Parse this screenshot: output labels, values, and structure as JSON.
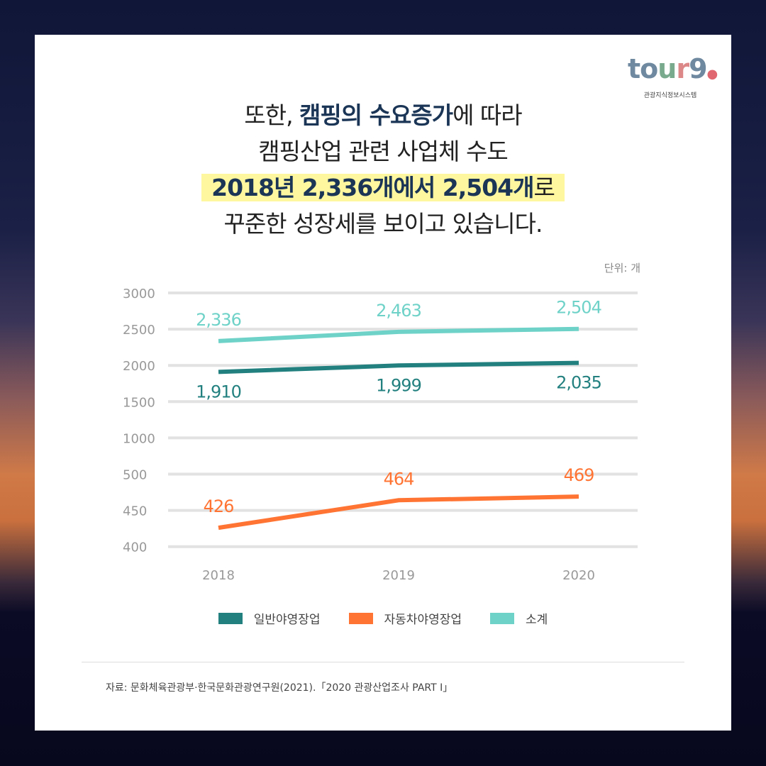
{
  "logo": {
    "text": "tour9",
    "subtitle": "관광지식정보시스템"
  },
  "title": {
    "line1_a": "또한, ",
    "line1_b": "캠핑의 수요증가",
    "line1_c": "에 따라",
    "line2": "캠핑산업 관련 사업체 수도",
    "line3_a": "2018년 2,336개에서 2,504개",
    "line3_b": "로",
    "line4": "꾸준한 성장세를 보이고 있습니다."
  },
  "unit": "단위: 개",
  "chart_data": {
    "type": "line",
    "categories": [
      "2018",
      "2019",
      "2020"
    ],
    "y_ticks": [
      "3000",
      "2500",
      "2000",
      "1500",
      "1000",
      "500",
      "450",
      "400"
    ],
    "y_tick_values": [
      3000,
      2500,
      2000,
      1500,
      1000,
      500,
      450,
      400
    ],
    "axis_note": "broken y-axis",
    "grid": true,
    "legend_position": "bottom",
    "series": [
      {
        "name": "일반야영장업",
        "values": [
          1910,
          1999,
          2035
        ],
        "labels": [
          "1,910",
          "1,999",
          "2,035"
        ],
        "color": "#22807f"
      },
      {
        "name": "자동차야영장업",
        "values": [
          426,
          464,
          469
        ],
        "labels": [
          "426",
          "464",
          "469"
        ],
        "color": "#ff7433"
      },
      {
        "name": "소계",
        "values": [
          2336,
          2463,
          2504
        ],
        "labels": [
          "2,336",
          "2,463",
          "2,504"
        ],
        "color": "#6fd2c8"
      }
    ]
  },
  "source": "자료: 문화체육관광부·한국문화관광연구원(2021).「2020 관광산업조사 PART Ⅰ」"
}
